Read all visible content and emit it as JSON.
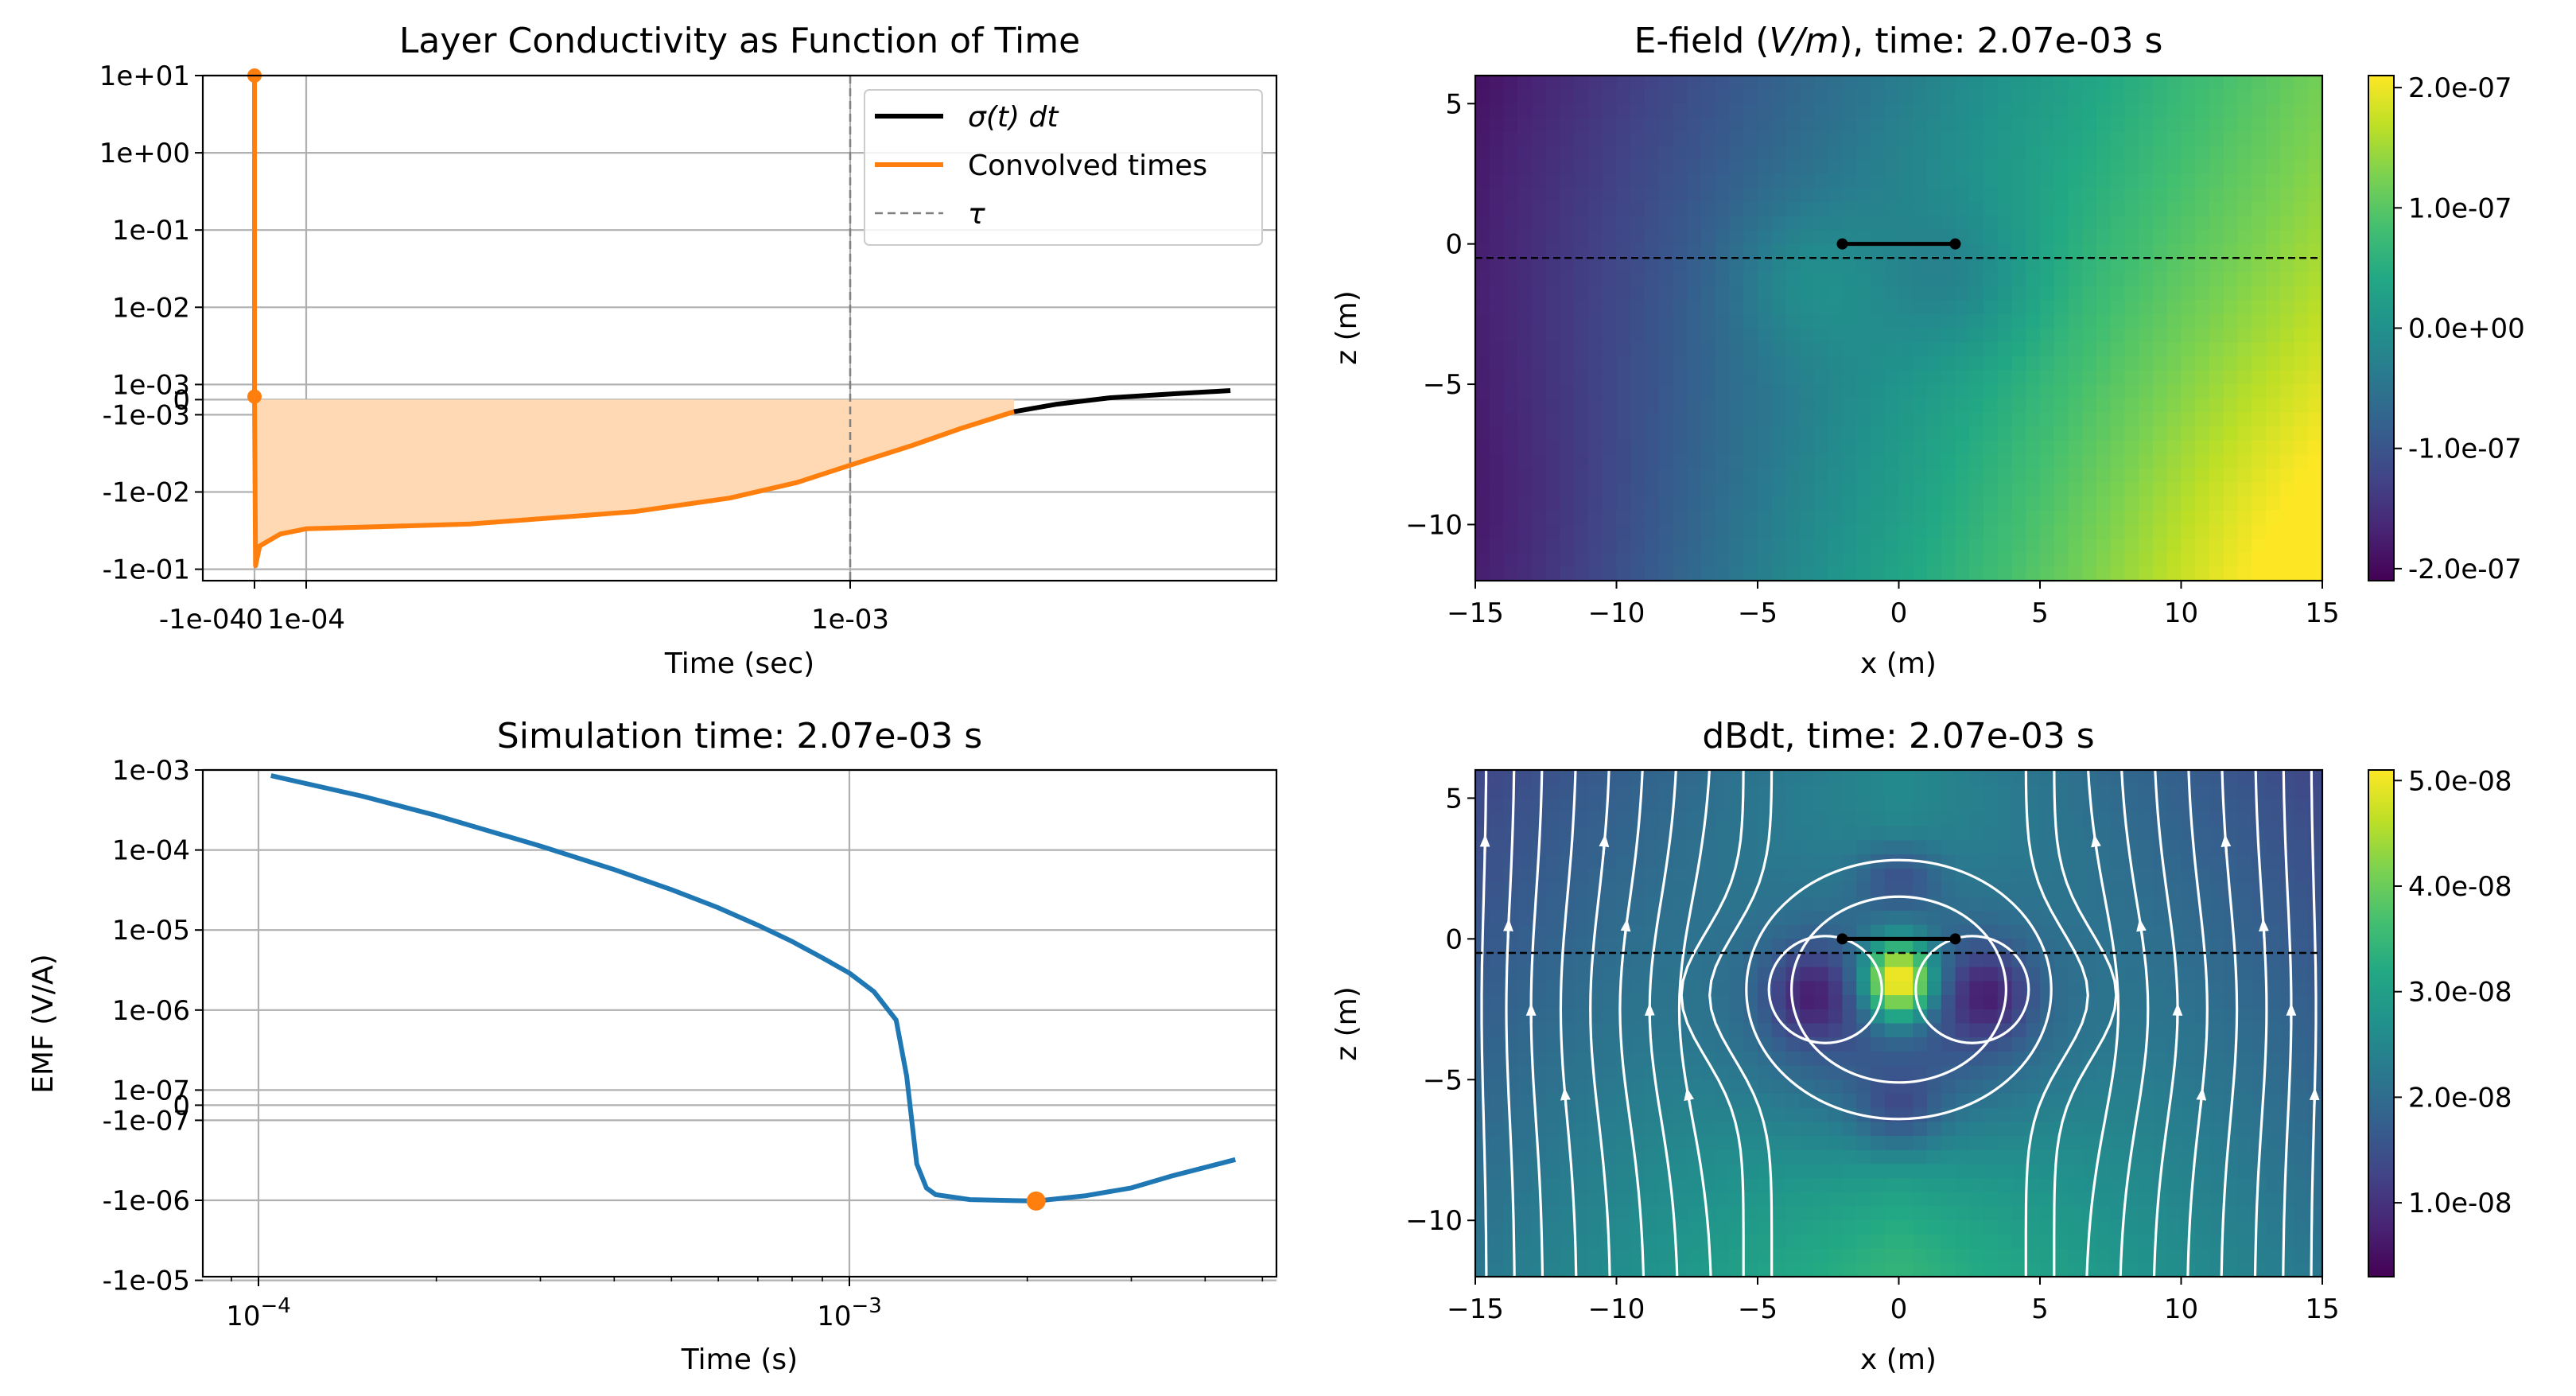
{
  "chart_data": [
    {
      "id": "conductivity",
      "type": "line",
      "title": "Layer Conductivity as Function of Time",
      "xlabel": "Time (sec)",
      "ylabel": "",
      "x_scale": "symlog",
      "x_ticks": [
        "-1e-04",
        "0",
        "1e-04",
        "1e-03"
      ],
      "y_scale": "symlog",
      "y_ticks": [
        "1e+01",
        "1e+00",
        "1e-01",
        "1e-02",
        "1e-03",
        "0",
        "-1e-03",
        "-1e-02",
        "-1e-01"
      ],
      "legend": {
        "placement": "upper-right",
        "entries": [
          {
            "label": "σ(t) dt",
            "color": "#000000",
            "style": "solid"
          },
          {
            "label": "Convolved times",
            "color": "#ff7f0e",
            "style": "solid"
          },
          {
            "label": "τ",
            "color": "#808080",
            "style": "dashed"
          }
        ]
      },
      "series": [
        {
          "name": "σ(t) dt",
          "color": "#000000",
          "points": [
            [
              0.002,
              -0.0008
            ],
            [
              0.0024,
              -0.0003
            ],
            [
              0.003,
              0.00012
            ],
            [
              0.004,
              0.0004
            ],
            [
              0.005,
              0.0006
            ]
          ]
        },
        {
          "name": "Convolved times",
          "color": "#ff7f0e",
          "points": [
            [
              0,
              10
            ],
            [
              0,
              0.0002
            ],
            [
              2e-06,
              -0.09
            ],
            [
              1e-05,
              -0.05
            ],
            [
              5e-05,
              -0.035
            ],
            [
              0.0001,
              -0.03
            ],
            [
              0.0002,
              -0.026
            ],
            [
              0.0004,
              -0.018
            ],
            [
              0.0006,
              -0.012
            ],
            [
              0.0008,
              -0.0075
            ],
            [
              0.001,
              -0.0045
            ],
            [
              0.0013,
              -0.0025
            ],
            [
              0.0016,
              -0.0015
            ],
            [
              0.002,
              -0.0008
            ]
          ]
        }
      ],
      "tau": 0.001,
      "fill_range": [
        0,
        0.002
      ],
      "fill_color": "#ffd9b3",
      "grid": true
    },
    {
      "id": "emf",
      "type": "line",
      "title": "Simulation time:   2.07e-03 s",
      "xlabel": "Time (s)",
      "ylabel": "EMF (V/A)",
      "x_scale": "log",
      "x_ticks": [
        "10^-4",
        "10^-3"
      ],
      "y_scale": "symlog",
      "y_ticks": [
        "1e-03",
        "1e-04",
        "1e-05",
        "1e-06",
        "1e-07",
        "0",
        "-1e-07",
        "-1e-06",
        "-1e-05"
      ],
      "series": [
        {
          "name": "",
          "color": "#1f77b4",
          "points": [
            [
              0.000105,
              0.00085
            ],
            [
              0.00015,
              0.00047
            ],
            [
              0.0002,
              0.00027
            ],
            [
              0.0003,
              0.000112
            ],
            [
              0.0004,
              5.7e-05
            ],
            [
              0.0005,
              3.2e-05
            ],
            [
              0.0006,
              1.9e-05
            ],
            [
              0.0007,
              1.15e-05
            ],
            [
              0.0008,
              7.2e-06
            ],
            [
              0.0009,
              4.5e-06
            ],
            [
              0.001,
              2.9e-06
            ],
            [
              0.0011,
              1.7e-06
            ],
            [
              0.0012,
              7.5e-07
            ],
            [
              0.00125,
              1.5e-07
            ],
            [
              0.0013,
              -3.5e-07
            ],
            [
              0.00135,
              -7e-07
            ],
            [
              0.0014,
              -8.5e-07
            ],
            [
              0.0016,
              -9.8e-07
            ],
            [
              0.00207,
              -1.02e-06
            ],
            [
              0.0025,
              -8.8e-07
            ],
            [
              0.003,
              -7e-07
            ],
            [
              0.0035,
              -5e-07
            ],
            [
              0.0045,
              -3.1e-07
            ]
          ]
        }
      ],
      "marker": {
        "x": 0.00207,
        "y": -1.02e-06,
        "color": "#ff7f0e"
      },
      "grid": true
    },
    {
      "id": "efield",
      "type": "heatmap",
      "title_main": "E-field (",
      "title_unit": "V/m",
      "title_end": "), time:   2.07e-03 s",
      "xlabel": "x (m)",
      "ylabel": "z (m)",
      "xlim": [
        -15,
        15
      ],
      "ylim": [
        -12,
        6
      ],
      "x_ticks": [
        -15,
        -10,
        -5,
        0,
        5,
        10,
        15
      ],
      "y_ticks": [
        5,
        0,
        -5,
        -10
      ],
      "colorbar_ticks": [
        "2.0e-07",
        "1.0e-07",
        "0.0e+00",
        "-1.0e-07",
        "-2.0e-07"
      ],
      "clim": [
        -2.1e-07,
        2.1e-07
      ],
      "colormap": "viridis",
      "loop": {
        "x1": -2,
        "x2": 2,
        "z": 0
      },
      "surface_z": -0.5
    },
    {
      "id": "dbdt",
      "type": "heatmap",
      "title": "dBdt, time:   2.07e-03 s",
      "xlabel": "x (m)",
      "ylabel": "z (m)",
      "xlim": [
        -15,
        15
      ],
      "ylim": [
        -12,
        6
      ],
      "x_ticks": [
        -15,
        -10,
        -5,
        0,
        5,
        10,
        15
      ],
      "y_ticks": [
        5,
        0,
        -5,
        -10
      ],
      "colorbar_ticks": [
        "5.0e-08",
        "4.0e-08",
        "3.0e-08",
        "2.0e-08",
        "1.0e-08"
      ],
      "clim": [
        3e-09,
        5.1e-08
      ],
      "colormap": "viridis",
      "streamlines": true,
      "loop": {
        "x1": -2,
        "x2": 2,
        "z": 0
      },
      "surface_z": -0.5
    }
  ]
}
